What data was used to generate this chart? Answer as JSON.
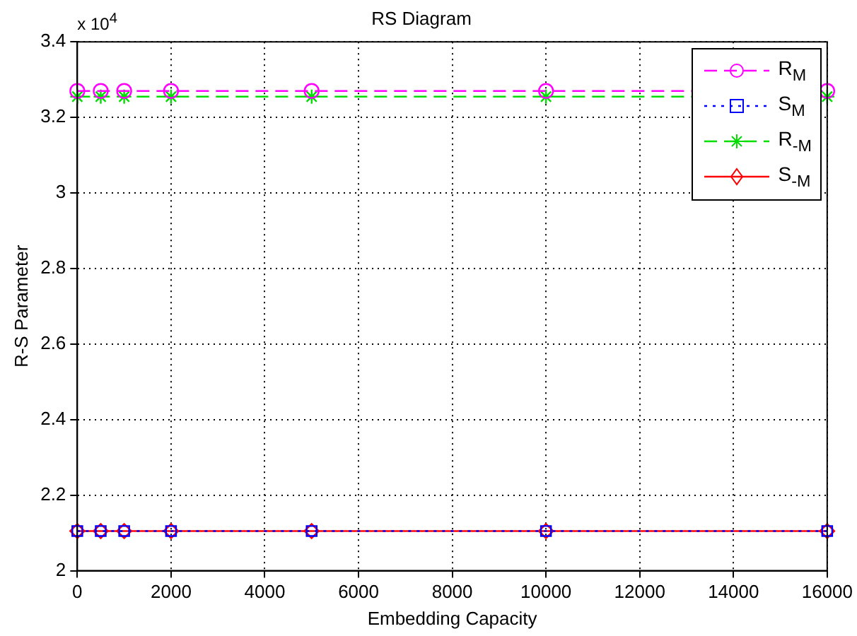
{
  "chart_data": {
    "type": "line",
    "title": "RS Diagram",
    "xlabel": "Embedding Capacity",
    "ylabel": "R-S Parameter",
    "annotations": [
      "x 10$^{4}$"
    ],
    "x": [
      0,
      500,
      1000,
      2000,
      5000,
      10000,
      16000
    ],
    "series": [
      {
        "name": "R$_{M}$",
        "color": "#ff00ff",
        "marker": "circle",
        "line_style": "dashed",
        "values": [
          3.27,
          3.27,
          3.27,
          3.27,
          3.27,
          3.27,
          3.27
        ]
      },
      {
        "name": "S$_{M}$",
        "color": "#0000ff",
        "marker": "square",
        "line_style": "dotted",
        "values": [
          2.105,
          2.105,
          2.105,
          2.105,
          2.105,
          2.105,
          2.105
        ]
      },
      {
        "name": "R$_{-M}$",
        "color": "#00dd00",
        "marker": "cross",
        "line_style": "dashed",
        "values": [
          3.255,
          3.255,
          3.255,
          3.255,
          3.255,
          3.255,
          3.255
        ]
      },
      {
        "name": "S$_{-M}$",
        "color": "#ff0000",
        "marker": "diamond",
        "line_style": "solid",
        "values": [
          2.105,
          2.105,
          2.105,
          2.105,
          2.105,
          2.105,
          2.105
        ]
      }
    ],
    "xlim": [
      0,
      16000
    ],
    "xticks": [
      0,
      2000,
      4000,
      6000,
      8000,
      10000,
      12000,
      14000,
      16000
    ],
    "ylim": [
      2,
      3.4
    ],
    "yticks": [
      2,
      2.2,
      2.4,
      2.6,
      2.8,
      3,
      3.2,
      3.4
    ],
    "grid": true,
    "legend": "top right"
  }
}
